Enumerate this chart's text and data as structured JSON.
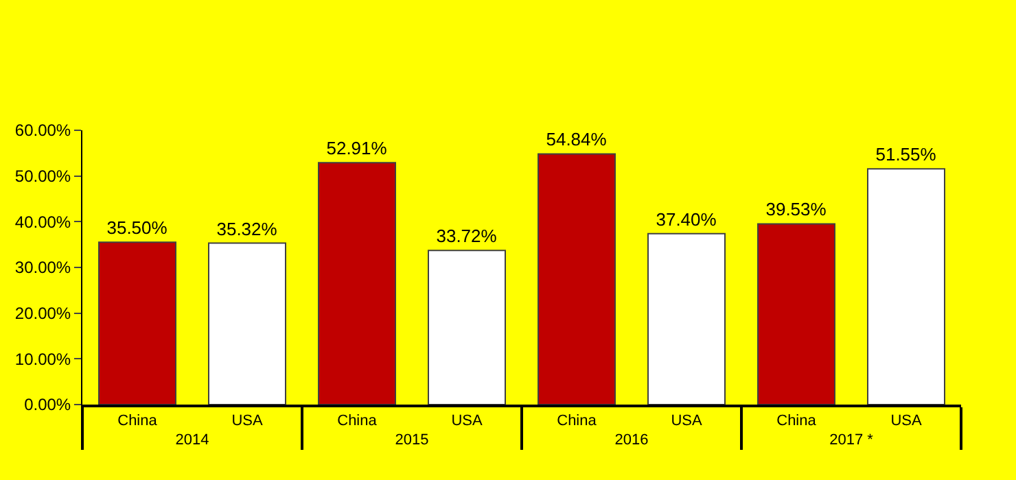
{
  "chart_data": {
    "type": "bar",
    "categories": [
      "2014",
      "2015",
      "2016",
      "2017 *"
    ],
    "series": [
      {
        "name": "China",
        "color": "#c00000",
        "values": [
          35.5,
          52.91,
          54.84,
          39.53
        ],
        "value_labels": [
          "35.50%",
          "52.91%",
          "54.84%",
          "39.53%"
        ]
      },
      {
        "name": "USA",
        "color": "#ffffff",
        "values": [
          35.32,
          33.72,
          37.4,
          51.55
        ],
        "value_labels": [
          "35.32%",
          "33.72%",
          "37.40%",
          "51.55%"
        ]
      }
    ],
    "ylim": [
      0,
      60
    ],
    "yticks": [
      {
        "value": 0,
        "label": "0.00%"
      },
      {
        "value": 10,
        "label": "10.00%"
      },
      {
        "value": 20,
        "label": "20.00%"
      },
      {
        "value": 30,
        "label": "30.00%"
      },
      {
        "value": 40,
        "label": "40.00%"
      },
      {
        "value": 50,
        "label": "50.00%"
      },
      {
        "value": 60,
        "label": "60.00%"
      }
    ],
    "grid": false,
    "legend": false
  }
}
